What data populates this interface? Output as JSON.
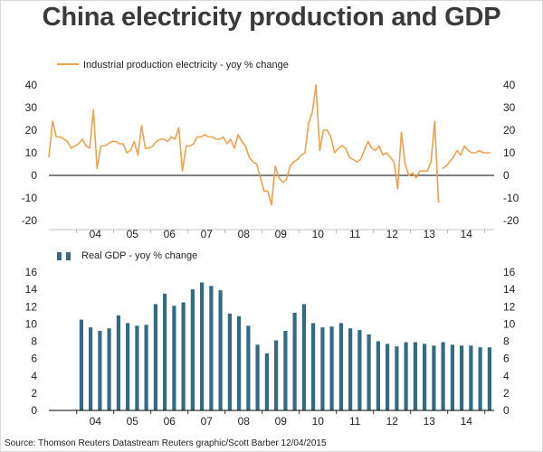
{
  "title": "China electricity production and GDP",
  "source_line": "Source: Thomson Reuters Datastream    Reuters graphic/Scott Barber    12/04/2015",
  "colors": {
    "electricity_line": "#f0a04b",
    "gdp_bar": "#336b87",
    "axis": "#000000",
    "tick_text": "#222222",
    "title_text": "#3a3a3a"
  },
  "chart_data": [
    {
      "type": "line",
      "title": "",
      "legend": "Industrial production electricity - yoy % change",
      "legend_position": "top-left",
      "ylim": [
        -20,
        40
      ],
      "yticks": [
        -20,
        -10,
        0,
        10,
        20,
        30,
        40
      ],
      "year_labels": [
        "04",
        "05",
        "06",
        "07",
        "08",
        "09",
        "10",
        "11",
        "12",
        "13",
        "14"
      ],
      "x_start": 2003.25,
      "x_end": 2015.25,
      "zero_line": true,
      "series": [
        {
          "name": "Industrial production electricity - yoy % change",
          "segments": [
            {
              "x": [
                2003.25,
                2003.35,
                2003.45,
                2003.55,
                2003.65,
                2003.75,
                2003.85,
                2003.95,
                2004.05,
                2004.15,
                2004.25,
                2004.35,
                2004.45,
                2004.55,
                2004.65,
                2004.75,
                2004.85,
                2004.95,
                2005.05,
                2005.15,
                2005.25,
                2005.35,
                2005.45,
                2005.55,
                2005.65,
                2005.75,
                2005.85,
                2005.95,
                2006.05,
                2006.15,
                2006.25,
                2006.35,
                2006.45,
                2006.55,
                2006.65,
                2006.75,
                2006.85,
                2006.95,
                2007.05,
                2007.15,
                2007.25,
                2007.35,
                2007.45,
                2007.55,
                2007.65,
                2007.75,
                2007.85,
                2007.95,
                2008.05,
                2008.15,
                2008.25,
                2008.35,
                2008.45,
                2008.55,
                2008.65,
                2008.75,
                2008.85,
                2008.95,
                2009.05,
                2009.15,
                2009.25,
                2009.35,
                2009.45,
                2009.55,
                2009.65,
                2009.75,
                2009.85,
                2009.95,
                2010.05,
                2010.15,
                2010.25,
                2010.35,
                2010.45,
                2010.55,
                2010.65,
                2010.75,
                2010.85,
                2010.95,
                2011.05,
                2011.15,
                2011.25,
                2011.35,
                2011.45,
                2011.55,
                2011.65,
                2011.75,
                2011.85,
                2011.95,
                2012.05,
                2012.15,
                2012.25,
                2012.35,
                2012.45,
                2012.55,
                2012.65,
                2012.75,
                2012.85,
                2012.95,
                2013.05,
                2013.15,
                2013.25,
                2013.35,
                2013.45,
                2013.55,
                2013.65,
                2013.75
              ],
              "y": [
                8,
                24,
                17,
                17,
                16,
                15,
                12,
                13,
                14,
                16,
                13,
                12,
                29,
                3,
                13,
                13,
                14,
                15,
                15,
                14,
                14,
                10,
                11,
                15,
                9,
                22,
                12,
                12,
                13,
                15,
                16,
                16,
                15,
                17,
                16,
                21,
                2,
                13,
                13,
                14,
                17,
                17,
                18,
                17,
                17,
                16,
                16,
                17,
                14,
                16,
                12,
                18,
                15,
                13,
                8,
                6,
                5,
                -1,
                -7,
                -7,
                -13,
                4,
                -1,
                -3,
                -2,
                4,
                6,
                7,
                9,
                10,
                23,
                28,
                40,
                11,
                20,
                20,
                17,
                10,
                12,
                13,
                12,
                8,
                7,
                6,
                7,
                11,
                15,
                12,
                11,
                13,
                9,
                10,
                8,
                6,
                -6,
                19,
                5,
                0,
                1,
                -1,
                2,
                2,
                2,
                6,
                24,
                -12
              ],
              "connect_values": "estimated"
            },
            {
              "x": [
                2013.85,
                2013.95,
                2014.05,
                2014.15,
                2014.25,
                2014.35,
                2014.45,
                2014.55,
                2014.65,
                2014.75,
                2014.85,
                2014.95,
                2015.05,
                2015.15
              ],
              "y": [
                3,
                4,
                6,
                8,
                11,
                9,
                13,
                11,
                10,
                10,
                11,
                10,
                10,
                10
              ]
            }
          ]
        }
      ]
    },
    {
      "type": "bar",
      "title": "",
      "legend": "Real GDP - yoy % change",
      "legend_position": "top-left",
      "ylim": [
        0,
        16
      ],
      "yticks": [
        0,
        2,
        4,
        6,
        8,
        10,
        12,
        14,
        16
      ],
      "year_labels": [
        "04",
        "05",
        "06",
        "07",
        "08",
        "09",
        "10",
        "11",
        "12",
        "13",
        "14"
      ],
      "categories": [
        "Q1 2004",
        "Q2 2004",
        "Q3 2004",
        "Q4 2004",
        "Q1 2005",
        "Q2 2005",
        "Q3 2005",
        "Q4 2005",
        "Q1 2006",
        "Q2 2006",
        "Q3 2006",
        "Q4 2006",
        "Q1 2007",
        "Q2 2007",
        "Q3 2007",
        "Q4 2007",
        "Q1 2008",
        "Q2 2008",
        "Q3 2008",
        "Q4 2008",
        "Q1 2009",
        "Q2 2009",
        "Q3 2009",
        "Q4 2009",
        "Q1 2010",
        "Q2 2010",
        "Q3 2010",
        "Q4 2010",
        "Q1 2011",
        "Q2 2011",
        "Q3 2011",
        "Q4 2011",
        "Q1 2012",
        "Q2 2012",
        "Q3 2012",
        "Q4 2012",
        "Q1 2013",
        "Q2 2013",
        "Q3 2013",
        "Q4 2013",
        "Q1 2014",
        "Q2 2014",
        "Q3 2014",
        "Q4 2014",
        "Q1 2015"
      ],
      "values": [
        10.5,
        9.6,
        9.2,
        9.5,
        11.0,
        10.1,
        9.8,
        9.9,
        12.3,
        13.5,
        12.1,
        12.5,
        14.0,
        14.8,
        14.4,
        13.9,
        11.2,
        10.9,
        9.8,
        7.6,
        6.6,
        8.1,
        9.2,
        11.3,
        12.3,
        10.1,
        9.6,
        9.7,
        10.1,
        9.5,
        9.3,
        8.8,
        8.0,
        7.7,
        7.4,
        7.9,
        7.9,
        7.7,
        7.5,
        7.9,
        7.6,
        7.5,
        7.5,
        7.3,
        7.3
      ]
    }
  ]
}
